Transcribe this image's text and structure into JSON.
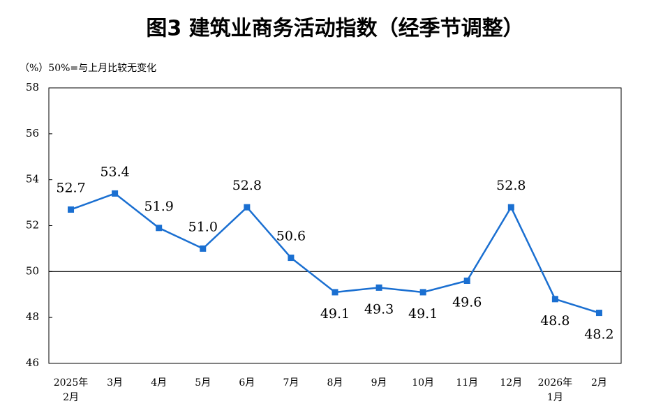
{
  "chart_data": {
    "type": "line",
    "title": "图3  建筑业商务活动指数（经季节调整）",
    "subtitle": "（%）50%=与上月比较无变化",
    "categories": [
      [
        "2025年",
        "2月"
      ],
      [
        "3月"
      ],
      [
        "4月"
      ],
      [
        "5月"
      ],
      [
        "6月"
      ],
      [
        "7月"
      ],
      [
        "8月"
      ],
      [
        "9月"
      ],
      [
        "10月"
      ],
      [
        "11月"
      ],
      [
        "12月"
      ],
      [
        "2026年",
        "1月"
      ],
      [
        "2月"
      ]
    ],
    "values": [
      52.7,
      53.4,
      51.9,
      51.0,
      52.8,
      50.6,
      49.1,
      49.3,
      49.1,
      49.6,
      52.8,
      48.8,
      48.2
    ],
    "value_labels": [
      "52.7",
      "53.4",
      "51.9",
      "51.0",
      "52.8",
      "50.6",
      "49.1",
      "49.3",
      "49.1",
      "49.6",
      "52.8",
      "48.8",
      "48.2"
    ],
    "color": "#1a6fd1",
    "ylim": [
      46,
      58
    ],
    "yticks": [
      46,
      48,
      50,
      52,
      54,
      56,
      58
    ],
    "reference_line": 50
  }
}
